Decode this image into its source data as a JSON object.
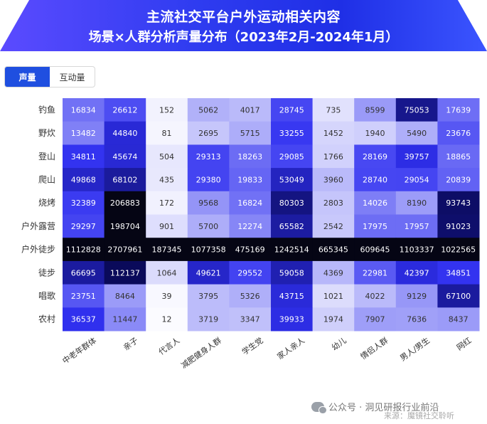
{
  "header": {
    "title_line1": "主流社交平台户外运动相关内容",
    "title_line2": "场景×人群分析声量分布（2023年2月-2024年1月）"
  },
  "tabs": [
    {
      "label": "声量",
      "active": true
    },
    {
      "label": "互动量",
      "active": false
    }
  ],
  "footer": {
    "account": "公众号 · 洞见研报行业前沿",
    "source": "来源：魔镜社交聆听"
  },
  "colors": {
    "low": "#ffffff",
    "mid": "#3030f0",
    "high": "#0a0a5a",
    "peak": "#050514"
  },
  "chart_data": {
    "type": "heatmap",
    "rows": [
      "钓鱼",
      "野炊",
      "登山",
      "爬山",
      "烧烤",
      "户外露营",
      "户外徒步",
      "徒步",
      "唱歌",
      "农村"
    ],
    "columns": [
      "中老年群体",
      "亲子",
      "代言人",
      "减肥健身人群",
      "学生党",
      "家人亲人",
      "幼儿",
      "情侣人群",
      "男人/男生",
      "网红"
    ],
    "values": [
      [
        16834,
        26612,
        152,
        5062,
        4017,
        28745,
        735,
        8599,
        75053,
        17639
      ],
      [
        13482,
        44840,
        81,
        2695,
        5715,
        33255,
        1452,
        1940,
        5490,
        23676
      ],
      [
        34811,
        45674,
        504,
        29313,
        18263,
        29085,
        1766,
        28169,
        39757,
        18865
      ],
      [
        49868,
        68102,
        435,
        29380,
        19833,
        53049,
        3960,
        28740,
        29054,
        20839
      ],
      [
        32389,
        206883,
        172,
        9568,
        16824,
        80303,
        2803,
        14026,
        8190,
        93743
      ],
      [
        29297,
        198704,
        901,
        5700,
        12274,
        65582,
        2542,
        17975,
        17957,
        91023
      ],
      [
        1112828,
        2707961,
        187345,
        1077358,
        475169,
        1242514,
        665345,
        609645,
        1103337,
        1022565
      ],
      [
        66695,
        112137,
        1064,
        49621,
        29552,
        59058,
        4369,
        22981,
        42397,
        34851
      ],
      [
        23751,
        8464,
        39,
        3795,
        5326,
        43715,
        1021,
        4022,
        9129,
        67100
      ],
      [
        36537,
        11447,
        12,
        3719,
        3347,
        39933,
        1974,
        7907,
        7636,
        8437
      ]
    ]
  }
}
